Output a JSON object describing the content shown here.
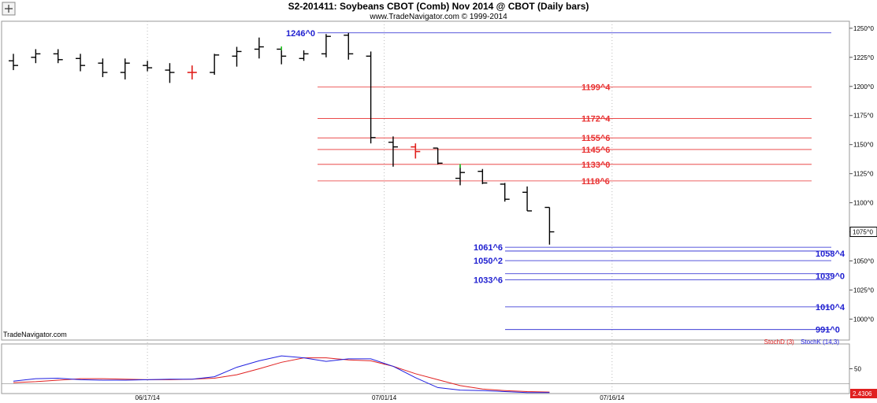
{
  "header": {
    "title": "S2-201411:  Soybeans CBOT (Comb) Nov 2014 @ CBOT  (Daily bars)",
    "subtitle": "www.TradeNavigator.com © 1999-2014"
  },
  "watermark": "TradeNavigator.com",
  "colors": {
    "bar": "#000000",
    "bar_highlight_red": "#e0201c",
    "bar_highlight_green": "#20c020",
    "fib_red": "#e83030",
    "target_blue": "#2020d0",
    "stoch_d": "#e02020",
    "stoch_k": "#2020e0",
    "price_box": "#000000"
  },
  "chart_data": [
    {
      "type": "ohlc",
      "x_ticks": [
        "06/17/14",
        "07/01/14",
        "07/16/14"
      ],
      "yticks": [
        1250,
        1225,
        1200,
        1175,
        1150,
        1125,
        1100,
        1075,
        1050,
        1025,
        1000
      ],
      "ytick_labels": [
        "1250^0",
        "1225^0",
        "1200^0",
        "1175^0",
        "1150^0",
        "1125^0",
        "1100^0",
        "1075^0",
        "1050^0",
        "1025^0",
        "1000^0"
      ],
      "ylim": [
        982,
        1256
      ],
      "last_price_label": "1075^0",
      "grid": "vertical-dotted",
      "bars": [
        {
          "o": 1222,
          "h": 1228,
          "l": 1214,
          "c": 1218
        },
        {
          "o": 1225,
          "h": 1232,
          "l": 1220,
          "c": 1228
        },
        {
          "o": 1228,
          "h": 1232,
          "l": 1220,
          "c": 1223
        },
        {
          "o": 1224,
          "h": 1228,
          "l": 1213,
          "c": 1218
        },
        {
          "o": 1220,
          "h": 1224,
          "l": 1208,
          "c": 1212
        },
        {
          "o": 1212,
          "h": 1224,
          "l": 1206,
          "c": 1220
        },
        {
          "o": 1218,
          "h": 1222,
          "l": 1213,
          "c": 1216
        },
        {
          "o": 1214,
          "h": 1220,
          "l": 1203,
          "c": 1212
        },
        {
          "o": 1212,
          "h": 1218,
          "l": 1206,
          "c": 1212,
          "color": "red"
        },
        {
          "o": 1212,
          "h": 1228,
          "l": 1210,
          "c": 1227
        },
        {
          "o": 1226,
          "h": 1234,
          "l": 1217,
          "c": 1230
        },
        {
          "o": 1232,
          "h": 1242,
          "l": 1224,
          "c": 1234
        },
        {
          "o": 1232,
          "h": 1233,
          "l": 1219,
          "c": 1226,
          "color": "green-top"
        },
        {
          "o": 1224,
          "h": 1231,
          "l": 1222,
          "c": 1228
        },
        {
          "o": 1228,
          "h": 1245,
          "l": 1225,
          "c": 1243
        },
        {
          "o": 1244,
          "h": 1246,
          "l": 1223,
          "c": 1228
        },
        {
          "o": 1226,
          "h": 1230,
          "l": 1151,
          "c": 1156
        },
        {
          "o": 1152,
          "h": 1157,
          "l": 1131,
          "c": 1148
        },
        {
          "o": 1148,
          "h": 1151,
          "l": 1138,
          "c": 1144,
          "color": "red"
        },
        {
          "o": 1147,
          "h": 1147,
          "l": 1133,
          "c": 1134
        },
        {
          "o": 1121,
          "h": 1132,
          "l": 1115,
          "c": 1126,
          "color": "green-top"
        },
        {
          "o": 1127,
          "h": 1129,
          "l": 1116,
          "c": 1117
        },
        {
          "o": 1116,
          "h": 1117,
          "l": 1101,
          "c": 1103
        },
        {
          "o": 1109,
          "h": 1114,
          "l": 1093,
          "c": 1093
        },
        {
          "o": 1096,
          "h": 1096,
          "l": 1064,
          "c": 1075
        }
      ],
      "levels": [
        {
          "label": "1246^0",
          "value": 1246,
          "color": "blue",
          "label_side": "left"
        },
        {
          "label": "1199^4",
          "value": 1199.5,
          "color": "red",
          "label_side": "right"
        },
        {
          "label": "1172^4",
          "value": 1172.5,
          "color": "red",
          "label_side": "right"
        },
        {
          "label": "1155^6",
          "value": 1155.75,
          "color": "red",
          "label_side": "right"
        },
        {
          "label": "1145^6",
          "value": 1145.75,
          "color": "red",
          "label_side": "right"
        },
        {
          "label": "1133^0",
          "value": 1133,
          "color": "red",
          "label_side": "right"
        },
        {
          "label": "1118^6",
          "value": 1118.75,
          "color": "red",
          "label_side": "right"
        },
        {
          "label": "1061^6",
          "value": 1061.75,
          "color": "blue",
          "label_side": "left"
        },
        {
          "label": "1058^4",
          "value": 1058.5,
          "color": "blue",
          "label_side": "right"
        },
        {
          "label": "1050^2",
          "value": 1050.25,
          "color": "blue",
          "label_side": "left"
        },
        {
          "label": "1039^0",
          "value": 1039,
          "color": "blue",
          "label_side": "right"
        },
        {
          "label": "1033^6",
          "value": 1033.75,
          "color": "blue",
          "label_side": "left"
        },
        {
          "label": "1010^4",
          "value": 1010.5,
          "color": "blue",
          "label_side": "right"
        },
        {
          "label": "991^0",
          "value": 991,
          "color": "blue",
          "label_side": "right"
        }
      ]
    },
    {
      "type": "line",
      "legend": [
        "StochD (3)",
        "StochK (14,3)"
      ],
      "legend_position": "top-right",
      "yticks": [
        50
      ],
      "ylim": [
        0,
        100
      ],
      "last_value_label": "2.4306",
      "series": [
        {
          "name": "StochD (3)",
          "color": "red",
          "values": [
            22,
            24,
            27,
            30,
            30,
            29,
            28,
            28,
            29,
            31,
            38,
            50,
            63,
            72,
            72,
            68,
            66,
            55,
            40,
            28,
            16,
            9,
            6,
            4,
            3
          ]
        },
        {
          "name": "StochK (14,3)",
          "color": "blue",
          "values": [
            25,
            30,
            31,
            28,
            27,
            27,
            28,
            29,
            29,
            34,
            53,
            66,
            76,
            72,
            65,
            70,
            70,
            55,
            32,
            12,
            7,
            6,
            4,
            2,
            2
          ]
        }
      ]
    }
  ]
}
